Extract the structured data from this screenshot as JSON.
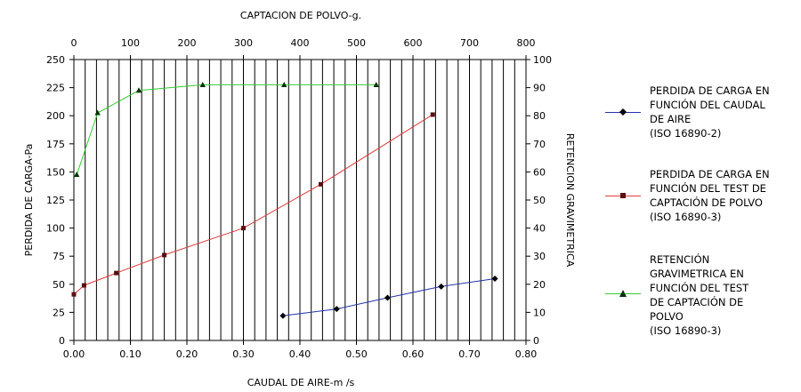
{
  "chart_data": {
    "type": "line",
    "title": "",
    "xlabel": "CAUDAL DE AIRE-m /s",
    "x2label": "CAPTACION DE POLVO-g.",
    "ylabel": "PERDIDA DE CARGA-Pa",
    "y2label": "RETENCION GRAVIMETRICA",
    "xlim": [
      0,
      0.8
    ],
    "x2lim": [
      0,
      800
    ],
    "ylim": [
      0,
      250
    ],
    "y2lim": [
      0,
      100
    ],
    "xticks": [
      "0.00",
      "0.10",
      "0.20",
      "0.30",
      "0.40",
      "0.50",
      "0.60",
      "0.70",
      "0.80"
    ],
    "x2ticks": [
      "0",
      "100",
      "200",
      "300",
      "400",
      "500",
      "600",
      "700",
      "800"
    ],
    "yticks": [
      "0",
      "25",
      "50",
      "75",
      "100",
      "125",
      "150",
      "175",
      "200",
      "225",
      "250"
    ],
    "y2ticks": [
      "0",
      "10",
      "20",
      "30",
      "40",
      "50",
      "60",
      "70",
      "80",
      "90",
      "100"
    ],
    "grid": "vertical",
    "legend_position": "right",
    "series": [
      {
        "name": "PERDIDA DE CARGA EN\nFUNCIÓN DEL CAUDAL\nDE AIRE\n(ISO 16890-2)",
        "x_axis": "bottom",
        "y_axis": "left",
        "color": "#2233aa",
        "marker": "diamond",
        "x": [
          0.37,
          0.465,
          0.555,
          0.65,
          0.745
        ],
        "y": [
          22,
          28,
          38,
          48,
          55
        ]
      },
      {
        "name": "PERDIDA DE CARGA EN\nFUNCIÓN DEL TEST DE\nCAPTACIÓN DE POLVO\n(ISO 16890-3)",
        "x_axis": "top",
        "y_axis": "left",
        "color": "#e03c3c",
        "marker": "square",
        "x": [
          0,
          18,
          75,
          160,
          300,
          437,
          635
        ],
        "y": [
          41,
          49,
          60,
          76,
          100,
          139,
          201
        ]
      },
      {
        "name": "RETENCIÓN\nGRAVIMETRICA EN\nFUNCIÓN DEL TEST\nDE CAPTACIÓN DE\nPOLVO\n(ISO 16890-3)",
        "x_axis": "top",
        "y_axis": "right",
        "color": "#33cc33",
        "marker": "triangle",
        "x": [
          5,
          42,
          115,
          228,
          372,
          535
        ],
        "y": [
          59,
          81,
          89,
          91,
          91,
          91
        ]
      }
    ]
  }
}
